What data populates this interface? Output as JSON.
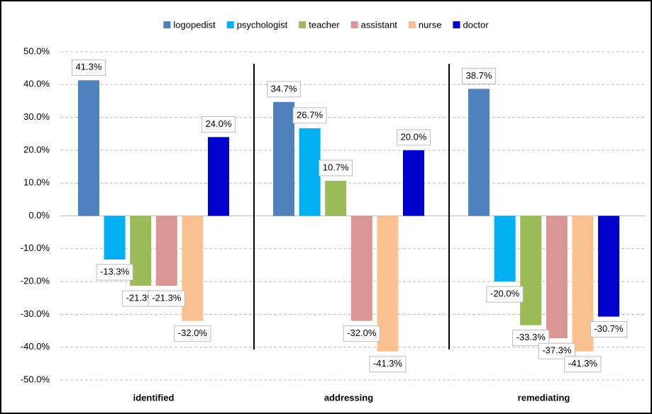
{
  "chart_data": {
    "type": "bar",
    "categories": [
      "identified",
      "addressing",
      "remediating"
    ],
    "series": [
      {
        "name": "logopedist",
        "color": "#4f81bd",
        "values": [
          41.3,
          34.7,
          38.7
        ],
        "value_labels": [
          "41.3%",
          "34.7%",
          "38.7%"
        ]
      },
      {
        "name": "psychologist",
        "color": "#00b0f0",
        "values": [
          -13.3,
          26.7,
          -20.0
        ],
        "value_labels": [
          "-13.3%",
          "26.7%",
          "-20.0%"
        ]
      },
      {
        "name": "teacher",
        "color": "#9bbb59",
        "values": [
          -21.3,
          10.7,
          -33.3
        ],
        "value_labels": [
          "-21.3%",
          "10.7%",
          "-33.3%"
        ]
      },
      {
        "name": "assistant",
        "color": "#d99694",
        "values": [
          -21.3,
          -32.0,
          -37.3
        ],
        "value_labels": [
          "-21.3%",
          "-32.0%",
          "-37.3%"
        ]
      },
      {
        "name": "nurse",
        "color": "#fac090",
        "values": [
          -32.0,
          -41.3,
          -41.3
        ],
        "value_labels": [
          "-32.0%",
          "-41.3%",
          "-41.3%"
        ]
      },
      {
        "name": "doctor",
        "color": "#0000cc",
        "values": [
          24.0,
          20.0,
          -30.7
        ],
        "value_labels": [
          "24.0%",
          "20.0%",
          "-30.7%"
        ]
      }
    ],
    "ylim": [
      -50,
      50
    ],
    "yticks": [
      {
        "value": -50,
        "label": "-50.0%"
      },
      {
        "value": -40,
        "label": "-40.0%"
      },
      {
        "value": -30,
        "label": "-30.0%"
      },
      {
        "value": -20,
        "label": "-20.0%"
      },
      {
        "value": -10,
        "label": "-10.0%"
      },
      {
        "value": 0,
        "label": "0.0%"
      },
      {
        "value": 10,
        "label": "10.0%"
      },
      {
        "value": 20,
        "label": "20.0%"
      },
      {
        "value": 30,
        "label": "30.0%"
      },
      {
        "value": 40,
        "label": "40.0%"
      },
      {
        "value": 50,
        "label": "50.0%"
      }
    ],
    "grid": true,
    "legend": "top"
  }
}
